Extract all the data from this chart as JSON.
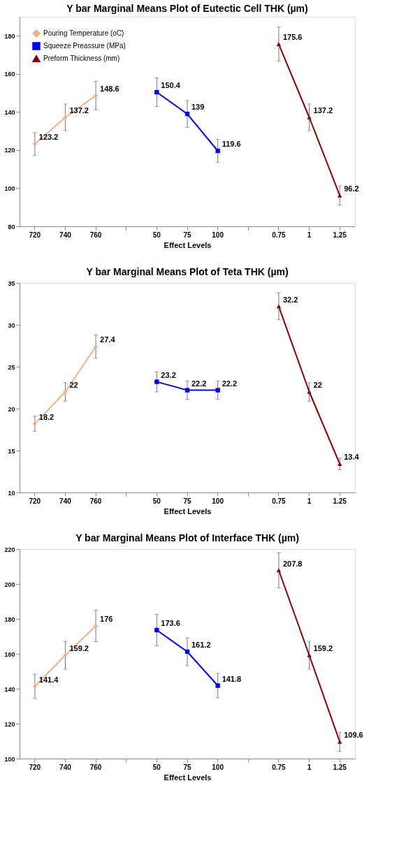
{
  "chart_data": [
    {
      "type": "line",
      "title": "Y bar Marginal Means Plot of Eutectic Cell THK (µm)",
      "xlabel": "Effect Levels",
      "categories": [
        "720",
        "740",
        "760",
        null,
        "50",
        "75",
        "100",
        null,
        "0.75",
        "1",
        "1.25"
      ],
      "ylim": [
        80,
        190
      ],
      "yticks": [
        80,
        100,
        120,
        140,
        160,
        180
      ],
      "grid": false,
      "legend": "top left",
      "data_labels": true,
      "series": [
        {
          "name": "Pouring Temperature (oC)",
          "color": "#f4b183",
          "marker": "diamond",
          "values": [
            123.2,
            137.2,
            148.6,
            null,
            null,
            null,
            null,
            null,
            null,
            null,
            null
          ],
          "errors": [
            6,
            7,
            7.5,
            null,
            null,
            null,
            null,
            null,
            null,
            null,
            null
          ]
        },
        {
          "name": "Squeeze Preassure (MPa)",
          "color": "#0000ff",
          "marker": "square",
          "values": [
            null,
            null,
            null,
            null,
            150.4,
            139,
            119.6,
            null,
            null,
            null,
            null
          ],
          "errors": [
            null,
            null,
            null,
            null,
            7.5,
            7,
            6,
            null,
            null,
            null,
            null
          ]
        },
        {
          "name": "Preform Thickness (mm)",
          "color": "#8b0000",
          "marker": "triangle",
          "values": [
            null,
            null,
            null,
            null,
            null,
            null,
            null,
            null,
            175.6,
            137.2,
            96.2
          ],
          "errors": [
            null,
            null,
            null,
            null,
            null,
            null,
            null,
            null,
            9,
            7,
            5
          ]
        }
      ]
    },
    {
      "type": "line",
      "title": "Y bar Marginal Means Plot of Teta THK (µm)",
      "xlabel": "Effect Levels",
      "categories": [
        "720",
        "740",
        "760",
        null,
        "50",
        "75",
        "100",
        null,
        "0.75",
        "1",
        "1.25"
      ],
      "ylim": [
        10,
        35
      ],
      "yticks": [
        10,
        15,
        20,
        25,
        30,
        35
      ],
      "grid": false,
      "legend": "top left",
      "data_labels": true,
      "series": [
        {
          "name": "Pouring Temperature (oC)",
          "color": "#f4b183",
          "marker": "diamond",
          "values": [
            18.2,
            22,
            27.4,
            null,
            null,
            null,
            null,
            null,
            null,
            null,
            null
          ],
          "errors": [
            0.9,
            1.1,
            1.4,
            null,
            null,
            null,
            null,
            null,
            null,
            null,
            null
          ]
        },
        {
          "name": "Squeeze Preassure (MPa)",
          "color": "#0000ff",
          "marker": "square",
          "values": [
            null,
            null,
            null,
            null,
            23.2,
            22.2,
            22.2,
            null,
            null,
            null,
            null
          ],
          "errors": [
            null,
            null,
            null,
            null,
            1.2,
            1.1,
            1.1,
            null,
            null,
            null,
            null
          ]
        },
        {
          "name": "Preform Thickness (mm)",
          "color": "#8b0000",
          "marker": "triangle",
          "values": [
            null,
            null,
            null,
            null,
            null,
            null,
            null,
            null,
            32.2,
            22,
            13.4
          ],
          "errors": [
            null,
            null,
            null,
            null,
            null,
            null,
            null,
            null,
            1.6,
            1.1,
            0.7
          ]
        }
      ]
    },
    {
      "type": "line",
      "title": "Y bar Marginal Means Plot of Interface THK (µm)",
      "xlabel": "Effect Levels",
      "categories": [
        "720",
        "740",
        "760",
        null,
        "50",
        "75",
        "100",
        null,
        "0.75",
        "1",
        "1.25"
      ],
      "ylim": [
        100,
        220
      ],
      "yticks": [
        100,
        120,
        140,
        160,
        180,
        200,
        220
      ],
      "grid": false,
      "legend": "top left",
      "data_labels": true,
      "series": [
        {
          "name": "Pouring Temperature (oC)",
          "color": "#f4b183",
          "marker": "diamond",
          "values": [
            141.4,
            159.2,
            176,
            null,
            null,
            null,
            null,
            null,
            null,
            null,
            null
          ],
          "errors": [
            7,
            8,
            9,
            null,
            null,
            null,
            null,
            null,
            null,
            null,
            null
          ]
        },
        {
          "name": "Squeeze Preassure (MPa)",
          "color": "#0000ff",
          "marker": "square",
          "values": [
            null,
            null,
            null,
            null,
            173.6,
            161.2,
            141.8,
            null,
            null,
            null,
            null
          ],
          "errors": [
            null,
            null,
            null,
            null,
            9,
            8,
            7,
            null,
            null,
            null,
            null
          ]
        },
        {
          "name": "Preform Thickness (mm)",
          "color": "#8b0000",
          "marker": "triangle",
          "values": [
            null,
            null,
            null,
            null,
            null,
            null,
            null,
            null,
            207.8,
            159.2,
            109.6
          ],
          "errors": [
            null,
            null,
            null,
            null,
            null,
            null,
            null,
            null,
            10,
            8,
            5.5
          ]
        }
      ]
    }
  ]
}
